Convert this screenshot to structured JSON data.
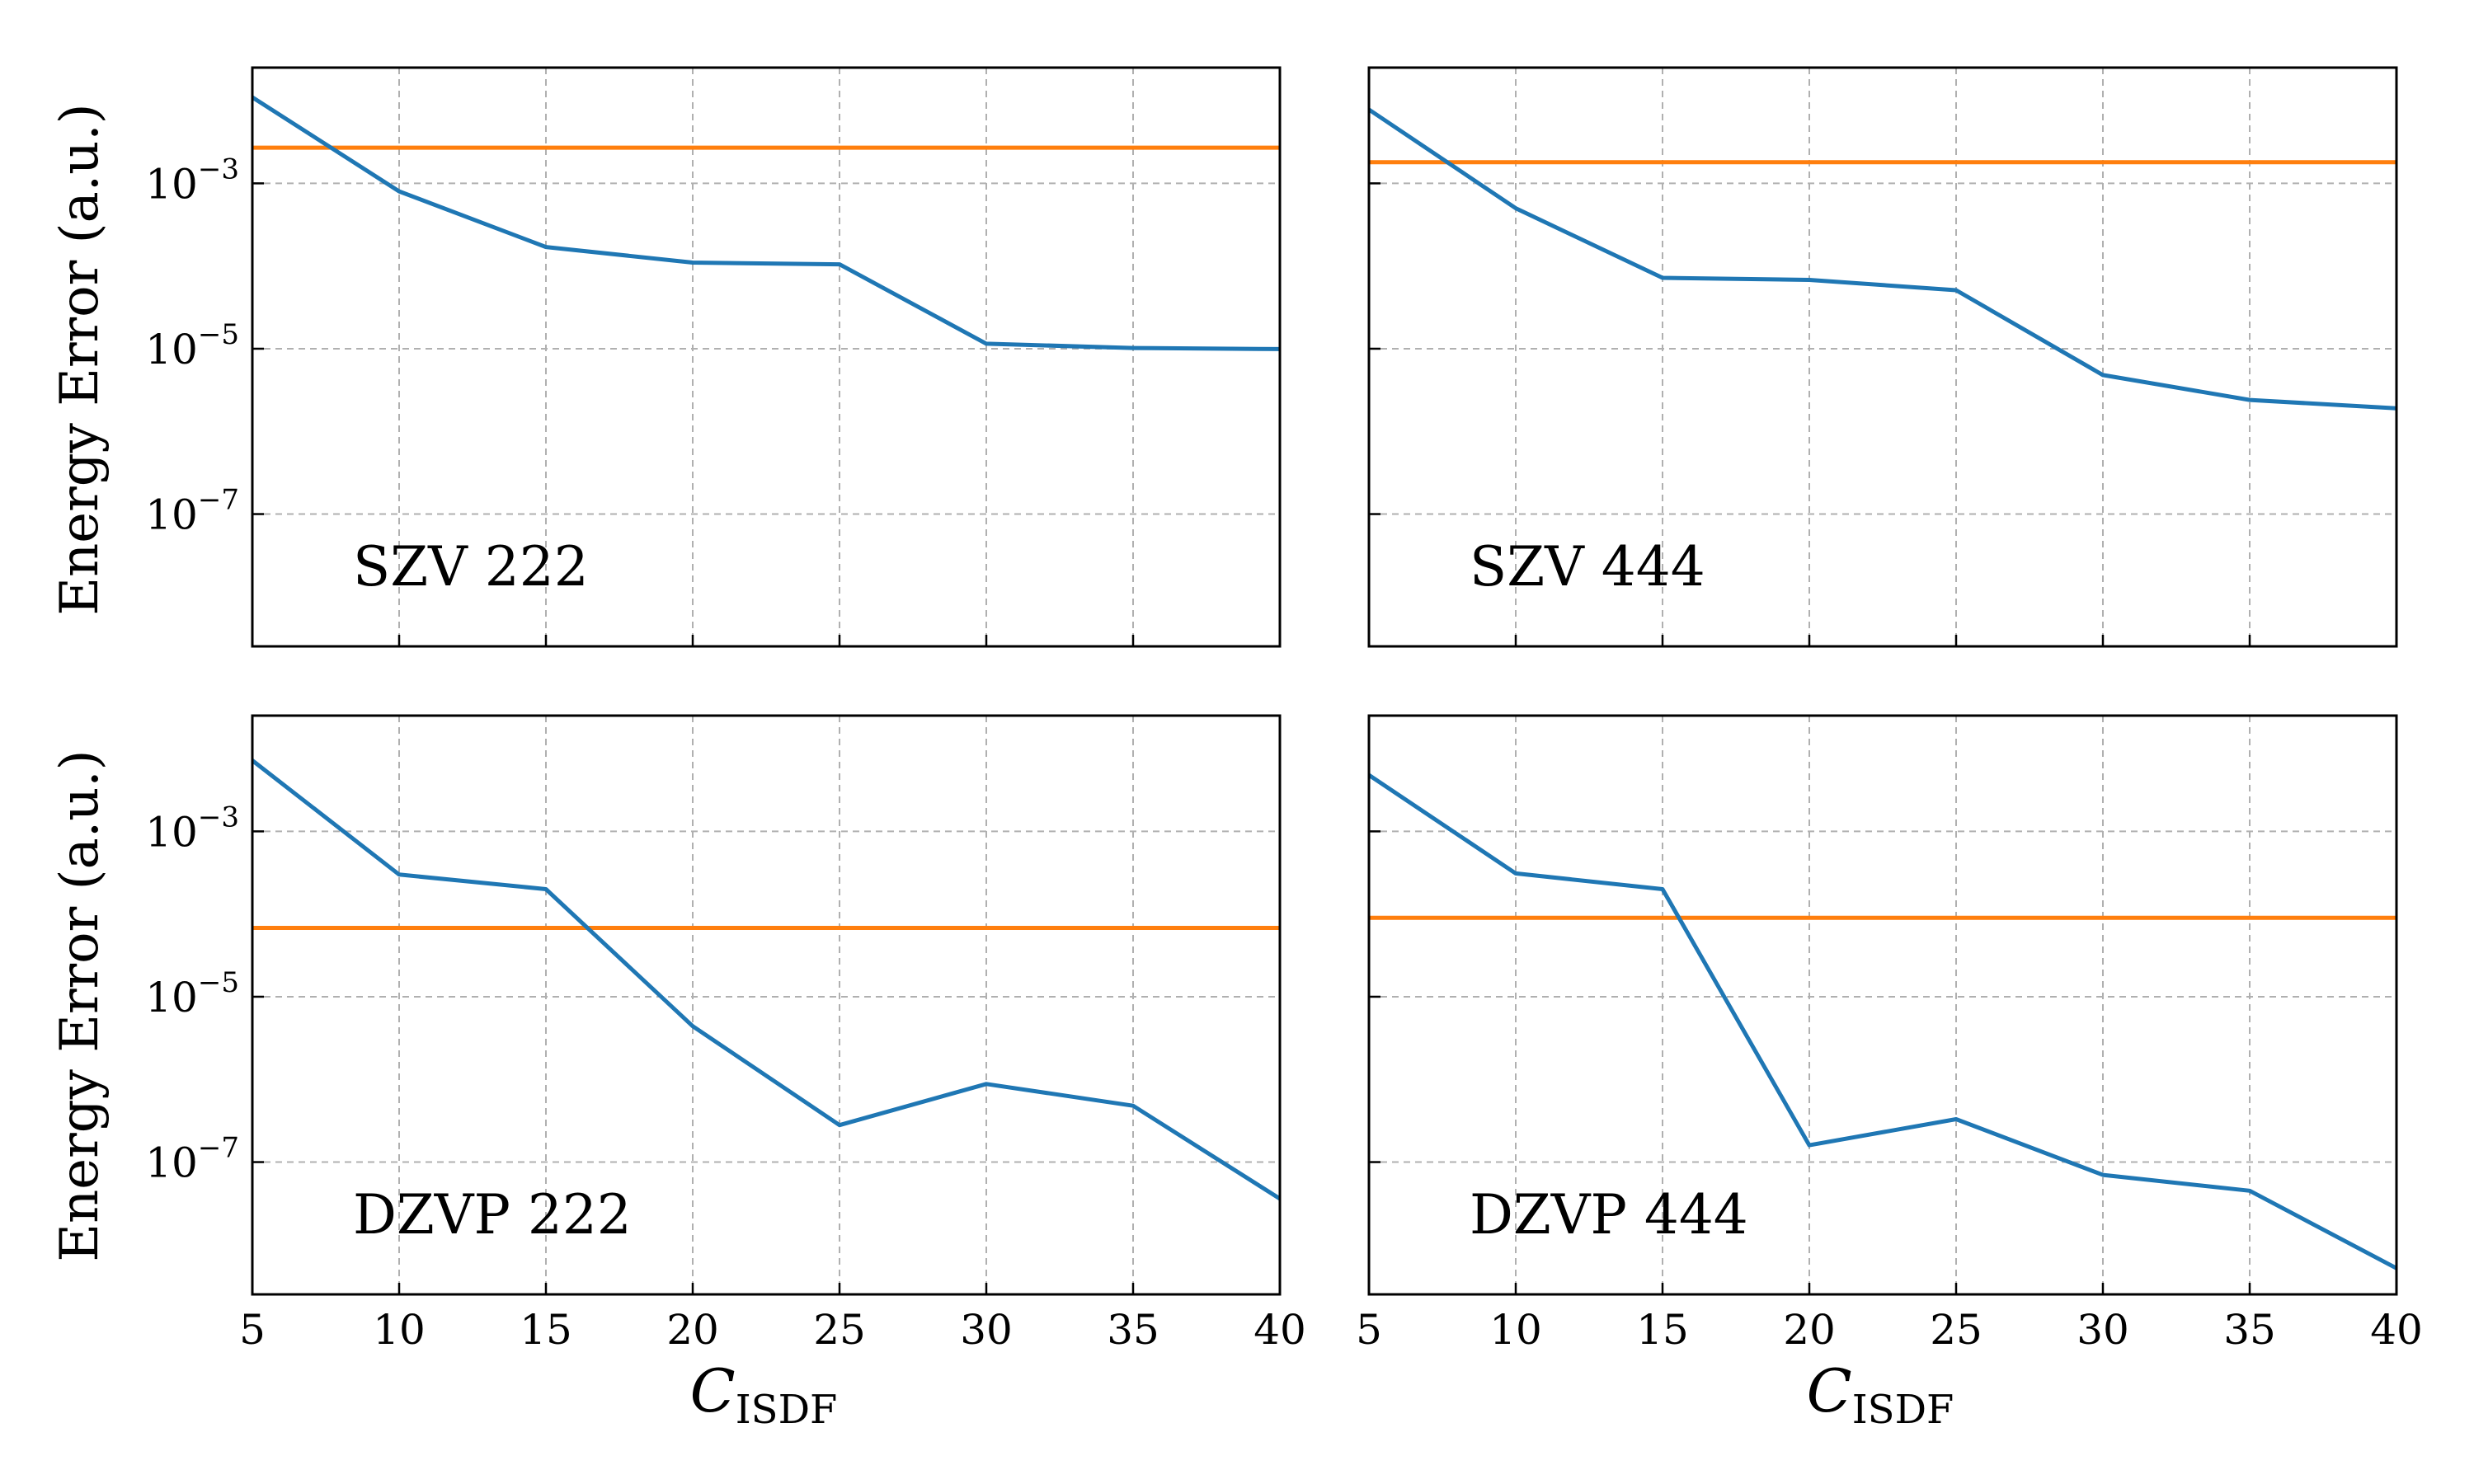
{
  "colors": {
    "series_line": "#1f77b4",
    "reference_line": "#ff7f0e",
    "grid": "#b0b0b0",
    "axes": "#000000"
  },
  "axes_shared": {
    "xlabel_main": "C",
    "xlabel_sub": "ISDF",
    "ylabel": "Energy Error (a.u.)",
    "x_ticks": [
      "5",
      "10",
      "15",
      "20",
      "25",
      "30",
      "35",
      "40"
    ],
    "y_tick_base": "10",
    "y_tick_exponents": [
      "−3",
      "−5",
      "−7"
    ]
  },
  "chart_data": [
    {
      "type": "line",
      "panel_label": "SZV 222",
      "x": [
        5,
        10,
        15,
        20,
        25,
        30,
        35,
        40
      ],
      "series": [
        {
          "values": [
            0.011,
            0.0008,
            0.00017,
            0.00011,
            0.000105,
            1.15e-05,
            1.02e-05,
            9.9e-06
          ]
        }
      ],
      "reference_value": 0.0027,
      "xlim": [
        5,
        40
      ],
      "ylim_log10": [
        -8.6,
        -1.6
      ],
      "yscale": "log",
      "grid": true
    },
    {
      "type": "line",
      "panel_label": "SZV 444",
      "x": [
        5,
        10,
        15,
        20,
        25,
        30,
        35,
        40
      ],
      "series": [
        {
          "values": [
            0.0078,
            0.0005,
            7.2e-05,
            6.8e-05,
            5.1e-05,
            4.8e-06,
            2.4e-06,
            1.9e-06
          ]
        }
      ],
      "reference_value": 0.0018,
      "xlim": [
        5,
        40
      ],
      "ylim_log10": [
        -8.6,
        -1.6
      ],
      "yscale": "log",
      "grid": true
    },
    {
      "type": "line",
      "panel_label": "DZVP 222",
      "x": [
        5,
        10,
        15,
        20,
        25,
        30,
        35,
        40
      ],
      "series": [
        {
          "values": [
            0.0072,
            0.0003,
            0.0002,
            4.4e-06,
            2.8e-07,
            8.8e-07,
            4.8e-07,
            3.6e-08
          ]
        }
      ],
      "reference_value": 6.8e-05,
      "xlim": [
        5,
        40
      ],
      "ylim_log10": [
        -8.6,
        -1.6
      ],
      "yscale": "log",
      "grid": true
    },
    {
      "type": "line",
      "panel_label": "DZVP 444",
      "x": [
        5,
        10,
        15,
        20,
        25,
        30,
        35,
        40
      ],
      "series": [
        {
          "values": [
            0.0048,
            0.00031,
            0.0002,
            1.6e-07,
            3.3e-07,
            7e-08,
            4.5e-08,
            5.2e-09
          ]
        }
      ],
      "reference_value": 9e-05,
      "xlim": [
        5,
        40
      ],
      "ylim_log10": [
        -8.6,
        -1.6
      ],
      "yscale": "log",
      "grid": true
    }
  ]
}
